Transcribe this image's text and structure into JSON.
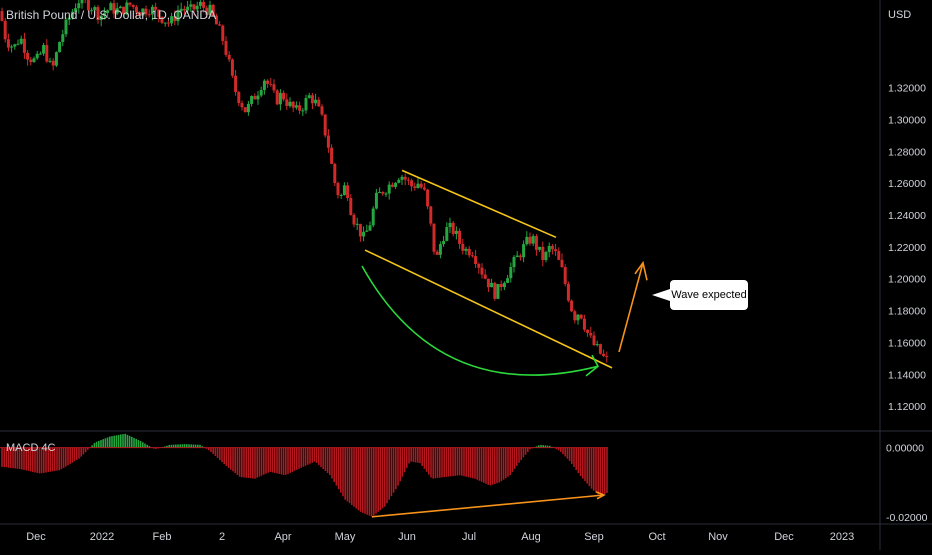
{
  "chart_data": [
    {
      "type": "candlestick",
      "title": "British Pound / U.S. Dollar, 1D, OANDA",
      "ylabel": "USD",
      "ylim": [
        1.105,
        1.375
      ],
      "y_ticks": [
        "1.32000",
        "1.30000",
        "1.28000",
        "1.26000",
        "1.24000",
        "1.22000",
        "1.20000",
        "1.18000",
        "1.16000",
        "1.14000",
        "1.12000"
      ],
      "x_ticks": [
        "Dec",
        "2022",
        "Feb",
        "2",
        "Apr",
        "May",
        "Jun",
        "Jul",
        "Aug",
        "Sep",
        "Oct",
        "Nov",
        "Dec",
        "2023"
      ],
      "price_path": [
        [
          0,
          1.368
        ],
        [
          6,
          1.35
        ],
        [
          14,
          1.345
        ],
        [
          20,
          1.352
        ],
        [
          28,
          1.34
        ],
        [
          36,
          1.336
        ],
        [
          44,
          1.345
        ],
        [
          52,
          1.33
        ],
        [
          60,
          1.35
        ],
        [
          70,
          1.365
        ],
        [
          78,
          1.375
        ],
        [
          90,
          1.372
        ],
        [
          100,
          1.365
        ],
        [
          110,
          1.37
        ],
        [
          120,
          1.368
        ],
        [
          130,
          1.372
        ],
        [
          140,
          1.368
        ],
        [
          150,
          1.37
        ],
        [
          160,
          1.365
        ],
        [
          170,
          1.36
        ],
        [
          180,
          1.37
        ],
        [
          190,
          1.368
        ],
        [
          200,
          1.372
        ],
        [
          210,
          1.368
        ],
        [
          216,
          1.36
        ],
        [
          222,
          1.352
        ],
        [
          228,
          1.338
        ],
        [
          234,
          1.32
        ],
        [
          240,
          1.312
        ],
        [
          246,
          1.305
        ],
        [
          252,
          1.312
        ],
        [
          258,
          1.318
        ],
        [
          264,
          1.326
        ],
        [
          270,
          1.32
        ],
        [
          276,
          1.312
        ],
        [
          282,
          1.316
        ],
        [
          288,
          1.31
        ],
        [
          296,
          1.305
        ],
        [
          302,
          1.308
        ],
        [
          310,
          1.315
        ],
        [
          316,
          1.31
        ],
        [
          322,
          1.3
        ],
        [
          328,
          1.285
        ],
        [
          334,
          1.262
        ],
        [
          340,
          1.25
        ],
        [
          346,
          1.26
        ],
        [
          352,
          1.24
        ],
        [
          358,
          1.232
        ],
        [
          364,
          1.225
        ],
        [
          370,
          1.235
        ],
        [
          376,
          1.25
        ],
        [
          382,
          1.255
        ],
        [
          388,
          1.258
        ],
        [
          394,
          1.262
        ],
        [
          400,
          1.266
        ],
        [
          406,
          1.262
        ],
        [
          412,
          1.258
        ],
        [
          418,
          1.26
        ],
        [
          424,
          1.255
        ],
        [
          430,
          1.236
        ],
        [
          436,
          1.21
        ],
        [
          442,
          1.226
        ],
        [
          448,
          1.232
        ],
        [
          454,
          1.23
        ],
        [
          460,
          1.222
        ],
        [
          466,
          1.218
        ],
        [
          472,
          1.218
        ],
        [
          478,
          1.21
        ],
        [
          484,
          1.202
        ],
        [
          490,
          1.196
        ],
        [
          496,
          1.19
        ],
        [
          502,
          1.198
        ],
        [
          508,
          1.204
        ],
        [
          514,
          1.21
        ],
        [
          520,
          1.216
        ],
        [
          526,
          1.222
        ],
        [
          532,
          1.226
        ],
        [
          538,
          1.218
        ],
        [
          544,
          1.212
        ],
        [
          550,
          1.22
        ],
        [
          556,
          1.215
        ],
        [
          562,
          1.205
        ],
        [
          568,
          1.19
        ],
        [
          574,
          1.176
        ],
        [
          580,
          1.18
        ],
        [
          586,
          1.168
        ],
        [
          592,
          1.16
        ],
        [
          598,
          1.155
        ],
        [
          604,
          1.15
        ],
        [
          608,
          1.148
        ]
      ],
      "annotations": {
        "channel_color": "#f5c518",
        "curve_color": "#2bd93c",
        "projection_color": "#f7931a",
        "callout_text": "Wave expected"
      }
    },
    {
      "type": "histogram",
      "title": "MACD 4C",
      "ylim": [
        -0.0215,
        0.0045
      ],
      "y_ticks": [
        "0.00000",
        "-0.02000"
      ],
      "hist_path": [
        [
          0,
          -0.0055
        ],
        [
          20,
          -0.0062
        ],
        [
          40,
          -0.0075
        ],
        [
          60,
          -0.0065
        ],
        [
          80,
          -0.003
        ],
        [
          95,
          0.0015
        ],
        [
          110,
          0.0032
        ],
        [
          125,
          0.004
        ],
        [
          140,
          0.002
        ],
        [
          155,
          -0.0005
        ],
        [
          170,
          0.0008
        ],
        [
          185,
          0.001
        ],
        [
          200,
          0.0008
        ],
        [
          210,
          -0.001
        ],
        [
          225,
          -0.005
        ],
        [
          240,
          -0.0085
        ],
        [
          255,
          -0.009
        ],
        [
          270,
          -0.007
        ],
        [
          285,
          -0.008
        ],
        [
          300,
          -0.006
        ],
        [
          315,
          -0.004
        ],
        [
          330,
          -0.008
        ],
        [
          345,
          -0.015
        ],
        [
          360,
          -0.0185
        ],
        [
          372,
          -0.02
        ],
        [
          385,
          -0.017
        ],
        [
          398,
          -0.011
        ],
        [
          410,
          -0.004
        ],
        [
          420,
          -0.0045
        ],
        [
          432,
          -0.009
        ],
        [
          445,
          -0.0085
        ],
        [
          460,
          -0.008
        ],
        [
          475,
          -0.009
        ],
        [
          490,
          -0.011
        ],
        [
          500,
          -0.01
        ],
        [
          510,
          -0.008
        ],
        [
          520,
          -0.004
        ],
        [
          530,
          -0.0005
        ],
        [
          540,
          0.0008
        ],
        [
          550,
          0.0005
        ],
        [
          560,
          -0.001
        ],
        [
          570,
          -0.004
        ],
        [
          580,
          -0.008
        ],
        [
          592,
          -0.012
        ],
        [
          600,
          -0.014
        ],
        [
          608,
          -0.013
        ]
      ],
      "positive_color": "#26a641",
      "negative_color": "#b2181e"
    }
  ]
}
